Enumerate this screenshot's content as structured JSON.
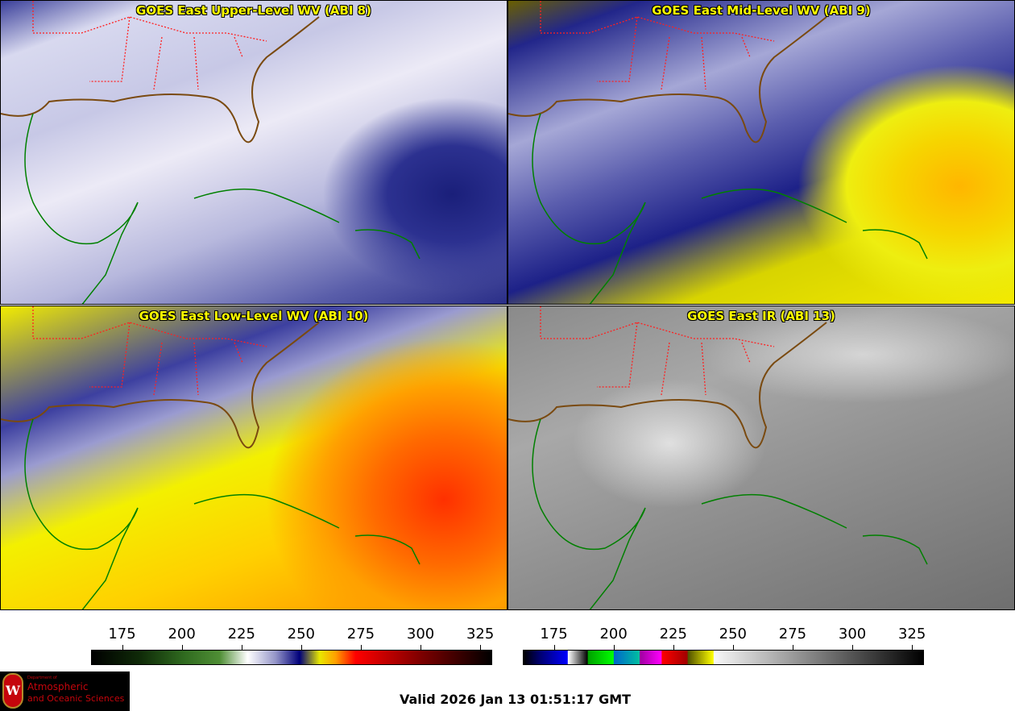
{
  "panels": [
    {
      "title": "GOES East Upper-Level WV (ABI 8)"
    },
    {
      "title": "GOES East Mid-Level WV (ABI 9)"
    },
    {
      "title": "GOES East Low-Level WV (ABI 10)"
    },
    {
      "title": "GOES East IR (ABI 13)"
    }
  ],
  "colorbars": [
    {
      "name": "water-vapor",
      "ticks": [
        "175",
        "200",
        "225",
        "250",
        "275",
        "300",
        "325"
      ],
      "units_range": [
        162,
        330
      ]
    },
    {
      "name": "infrared",
      "ticks": [
        "175",
        "200",
        "225",
        "250",
        "275",
        "300",
        "325"
      ],
      "units_range": [
        162,
        330
      ]
    }
  ],
  "logo": {
    "line1": "Department of",
    "line2": "Atmospheric",
    "line3": "and Oceanic Sciences",
    "crest_letter": "W"
  },
  "valid_time": "Valid 2026 Jan 13 01:51:17 GMT",
  "colors": {
    "title": "#ffff00",
    "state_borders": "#ff2020",
    "coastlines": "#008000"
  }
}
